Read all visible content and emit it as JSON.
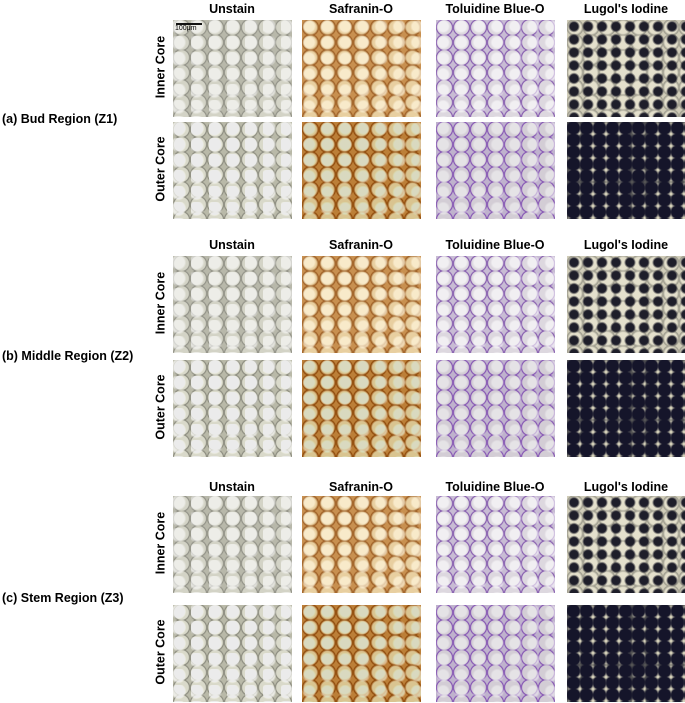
{
  "scale_bar": "100μm",
  "regions": [
    {
      "label": "(a) Bud Region (Z1)",
      "columns": [
        "Unstain",
        "Safranin-O",
        "Toluidine Blue-O",
        "Lugol's Iodine"
      ],
      "rows": [
        "Inner Core",
        "Outer Core"
      ]
    },
    {
      "label": "(b) Middle Region (Z2)",
      "columns": [
        "Unstain",
        "Safranin-O",
        "Toluidine Blue-O",
        "Lugol's Iodine"
      ],
      "rows": [
        "Inner Core",
        "Outer Core"
      ]
    },
    {
      "label": "(c) Stem Region (Z3)",
      "columns": [
        "Unstain",
        "Safranin-O",
        "Toluidine Blue-O",
        "Lugol's Iodine"
      ],
      "rows": [
        "Inner Core",
        "Outer Core"
      ]
    }
  ]
}
